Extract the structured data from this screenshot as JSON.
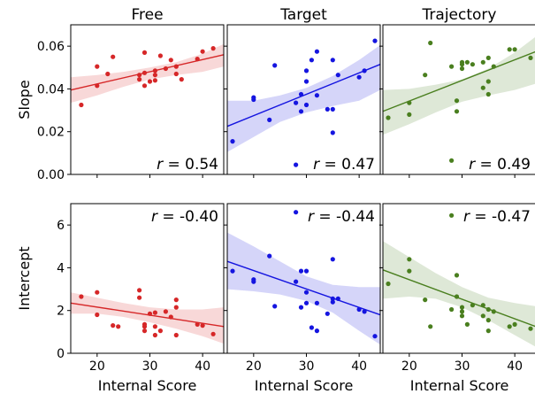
{
  "chart_data": [
    {
      "type": "scatter",
      "title": "Free",
      "ylabel": "Slope",
      "xlabel": "",
      "color": "#d62728",
      "xlim": [
        15,
        44
      ],
      "ylim": [
        0,
        0.07
      ],
      "yticks": [
        0,
        0.02,
        0.04,
        0.06
      ],
      "ytick_labels": [
        "0.00",
        "0.02",
        "0.04",
        "0.06"
      ],
      "xticks": [
        20,
        30,
        40
      ],
      "xtick_labels": [],
      "annotation": {
        "var": "r",
        "value": "= 0.54",
        "pos": "bottom-right"
      },
      "points": [
        [
          17,
          0.0325
        ],
        [
          20,
          0.0415
        ],
        [
          20,
          0.0505
        ],
        [
          22,
          0.047
        ],
        [
          23,
          0.055
        ],
        [
          28,
          0.0445
        ],
        [
          28,
          0.0465
        ],
        [
          29,
          0.0415
        ],
        [
          29,
          0.0475
        ],
        [
          29,
          0.057
        ],
        [
          30,
          0.0435
        ],
        [
          31,
          0.044
        ],
        [
          31,
          0.0485
        ],
        [
          31,
          0.0465
        ],
        [
          32,
          0.0555
        ],
        [
          33,
          0.0495
        ],
        [
          34,
          0.0535
        ],
        [
          35,
          0.0505
        ],
        [
          35,
          0.047
        ],
        [
          36,
          0.0445
        ],
        [
          39,
          0.054
        ],
        [
          40,
          0.0575
        ],
        [
          42,
          0.059
        ]
      ],
      "fit": {
        "x": [
          15,
          44
        ],
        "y": [
          0.0395,
          0.056
        ]
      },
      "band": {
        "x": [
          15,
          20,
          25,
          30,
          35,
          40,
          44
        ],
        "upper": [
          0.0455,
          0.0465,
          0.048,
          0.05,
          0.0525,
          0.0565,
          0.061
        ],
        "lower": [
          0.0335,
          0.037,
          0.041,
          0.0445,
          0.0465,
          0.048,
          0.0505
        ]
      }
    },
    {
      "type": "scatter",
      "title": "Target",
      "ylabel": "",
      "xlabel": "",
      "color": "#1515e0",
      "xlim": [
        15,
        44
      ],
      "ylim": [
        0,
        0.07
      ],
      "yticks": [
        0,
        0.02,
        0.04,
        0.06
      ],
      "ytick_labels": [],
      "xticks": [
        20,
        30,
        40
      ],
      "xtick_labels": [],
      "annotation": {
        "var": "r",
        "value": "= 0.47",
        "pos": "bottom-right"
      },
      "points": [
        [
          16,
          0.0155
        ],
        [
          20,
          0.036
        ],
        [
          20,
          0.035
        ],
        [
          23,
          0.0255
        ],
        [
          24,
          0.051
        ],
        [
          28,
          0.0045
        ],
        [
          28,
          0.0335
        ],
        [
          29,
          0.0375
        ],
        [
          29,
          0.0295
        ],
        [
          30,
          0.0435
        ],
        [
          30,
          0.0485
        ],
        [
          30,
          0.0325
        ],
        [
          31,
          0.0535
        ],
        [
          32,
          0.0575
        ],
        [
          32,
          0.037
        ],
        [
          34,
          0.0305
        ],
        [
          35,
          0.0305
        ],
        [
          35,
          0.0535
        ],
        [
          35,
          0.0195
        ],
        [
          36,
          0.0465
        ],
        [
          40,
          0.0455
        ],
        [
          41,
          0.0485
        ],
        [
          43,
          0.0625
        ]
      ],
      "fit": {
        "x": [
          15,
          44
        ],
        "y": [
          0.0225,
          0.0515
        ]
      },
      "band": {
        "x": [
          15,
          20,
          25,
          30,
          35,
          40,
          44
        ],
        "upper": [
          0.0345,
          0.0345,
          0.037,
          0.0405,
          0.046,
          0.0535,
          0.0605
        ],
        "lower": [
          0.0105,
          0.0175,
          0.0245,
          0.029,
          0.032,
          0.0345,
          0.0395
        ]
      }
    },
    {
      "type": "scatter",
      "title": "Trajectory",
      "ylabel": "",
      "xlabel": "",
      "color": "#4a7f1f",
      "xlim": [
        15,
        44
      ],
      "ylim": [
        0,
        0.07
      ],
      "yticks": [
        0,
        0.02,
        0.04,
        0.06
      ],
      "ytick_labels": [],
      "xticks": [
        20,
        30,
        40
      ],
      "xtick_labels": [],
      "annotation": {
        "var": "r",
        "value": "= 0.49",
        "pos": "bottom-right"
      },
      "points": [
        [
          16,
          0.0265
        ],
        [
          20,
          0.028
        ],
        [
          20,
          0.0335
        ],
        [
          23,
          0.0465
        ],
        [
          24,
          0.0615
        ],
        [
          28,
          0.0065
        ],
        [
          28,
          0.0505
        ],
        [
          29,
          0.0295
        ],
        [
          29,
          0.0345
        ],
        [
          30,
          0.0495
        ],
        [
          30,
          0.0515
        ],
        [
          30,
          0.0525
        ],
        [
          31,
          0.0525
        ],
        [
          32,
          0.0515
        ],
        [
          34,
          0.0525
        ],
        [
          34,
          0.0405
        ],
        [
          35,
          0.0435
        ],
        [
          35,
          0.0375
        ],
        [
          35,
          0.0545
        ],
        [
          36,
          0.0505
        ],
        [
          39,
          0.0585
        ],
        [
          40,
          0.0585
        ],
        [
          43,
          0.0545
        ]
      ],
      "fit": {
        "x": [
          15,
          44
        ],
        "y": [
          0.0295,
          0.0575
        ]
      },
      "band": {
        "x": [
          15,
          20,
          25,
          30,
          35,
          40,
          44
        ],
        "upper": [
          0.0395,
          0.04,
          0.042,
          0.0445,
          0.0495,
          0.057,
          0.0645
        ],
        "lower": [
          0.0185,
          0.0235,
          0.029,
          0.034,
          0.037,
          0.0395,
          0.0425
        ]
      }
    },
    {
      "type": "scatter",
      "title": "",
      "ylabel": "Intercept",
      "xlabel": "Internal Score",
      "color": "#d62728",
      "xlim": [
        15,
        44
      ],
      "ylim": [
        0,
        7
      ],
      "yticks": [
        0,
        2,
        4,
        6
      ],
      "ytick_labels": [
        "0",
        "2",
        "4",
        "6"
      ],
      "xticks": [
        20,
        30,
        40
      ],
      "xtick_labels": [
        "20",
        "30",
        "40"
      ],
      "annotation": {
        "var": "r",
        "value": "= -0.40",
        "pos": "top-right"
      },
      "points": [
        [
          17,
          2.65
        ],
        [
          20,
          1.8
        ],
        [
          20,
          2.85
        ],
        [
          23,
          1.3
        ],
        [
          24,
          1.25
        ],
        [
          28,
          2.95
        ],
        [
          28,
          2.6
        ],
        [
          29,
          1.05
        ],
        [
          29,
          1.35
        ],
        [
          29,
          1.25
        ],
        [
          30,
          1.85
        ],
        [
          31,
          1.25
        ],
        [
          31,
          0.85
        ],
        [
          31,
          1.9
        ],
        [
          32,
          1.05
        ],
        [
          33,
          1.95
        ],
        [
          34,
          1.7
        ],
        [
          35,
          2.5
        ],
        [
          35,
          2.15
        ],
        [
          35,
          0.85
        ],
        [
          39,
          1.35
        ],
        [
          40,
          1.3
        ],
        [
          42,
          0.9
        ]
      ],
      "fit": {
        "x": [
          15,
          44
        ],
        "y": [
          2.35,
          1.25
        ]
      },
      "band": {
        "x": [
          15,
          20,
          25,
          30,
          35,
          40,
          44
        ],
        "upper": [
          2.85,
          2.6,
          2.35,
          2.15,
          2.05,
          2.05,
          2.15
        ],
        "lower": [
          1.85,
          1.85,
          1.7,
          1.45,
          1.15,
          0.8,
          0.45
        ]
      }
    },
    {
      "type": "scatter",
      "title": "",
      "ylabel": "",
      "xlabel": "Internal Score",
      "color": "#1515e0",
      "xlim": [
        15,
        44
      ],
      "ylim": [
        0,
        7
      ],
      "yticks": [
        0,
        2,
        4,
        6
      ],
      "ytick_labels": [],
      "xticks": [
        20,
        30,
        40
      ],
      "xtick_labels": [
        "20",
        "30",
        "40"
      ],
      "annotation": {
        "var": "r",
        "value": "= -0.44",
        "pos": "top-right"
      },
      "points": [
        [
          16,
          3.85
        ],
        [
          20,
          3.45
        ],
        [
          20,
          3.35
        ],
        [
          23,
          4.55
        ],
        [
          24,
          2.2
        ],
        [
          28,
          6.6
        ],
        [
          28,
          3.35
        ],
        [
          29,
          3.85
        ],
        [
          29,
          2.15
        ],
        [
          30,
          3.85
        ],
        [
          30,
          2.85
        ],
        [
          30,
          2.35
        ],
        [
          31,
          1.2
        ],
        [
          32,
          1.05
        ],
        [
          32,
          2.35
        ],
        [
          34,
          1.85
        ],
        [
          35,
          2.4
        ],
        [
          35,
          4.4
        ],
        [
          35,
          2.55
        ],
        [
          36,
          2.55
        ],
        [
          40,
          2.05
        ],
        [
          41,
          1.95
        ],
        [
          43,
          0.8
        ]
      ],
      "fit": {
        "x": [
          15,
          44
        ],
        "y": [
          4.3,
          1.8
        ]
      },
      "band": {
        "x": [
          15,
          20,
          25,
          30,
          35,
          40,
          44
        ],
        "upper": [
          5.65,
          5.0,
          4.3,
          3.6,
          3.2,
          3.1,
          3.1
        ],
        "lower": [
          3.0,
          2.9,
          2.75,
          2.45,
          1.9,
          1.05,
          0.4
        ]
      }
    },
    {
      "type": "scatter",
      "title": "",
      "ylabel": "",
      "xlabel": "Internal Score",
      "color": "#4a7f1f",
      "xlim": [
        15,
        44
      ],
      "ylim": [
        0,
        7
      ],
      "yticks": [
        0,
        2,
        4,
        6
      ],
      "ytick_labels": [],
      "xticks": [
        20,
        30,
        40
      ],
      "xtick_labels": [
        "20",
        "30",
        "40"
      ],
      "annotation": {
        "var": "r",
        "value": "= -0.47",
        "pos": "top-right"
      },
      "points": [
        [
          16,
          3.25
        ],
        [
          20,
          4.4
        ],
        [
          20,
          3.85
        ],
        [
          23,
          2.5
        ],
        [
          24,
          1.25
        ],
        [
          28,
          6.45
        ],
        [
          28,
          2.05
        ],
        [
          29,
          3.65
        ],
        [
          29,
          2.65
        ],
        [
          30,
          2.15
        ],
        [
          30,
          1.95
        ],
        [
          30,
          1.75
        ],
        [
          31,
          1.35
        ],
        [
          32,
          2.25
        ],
        [
          34,
          2.25
        ],
        [
          34,
          1.75
        ],
        [
          35,
          2.05
        ],
        [
          35,
          1.55
        ],
        [
          35,
          1.05
        ],
        [
          36,
          1.95
        ],
        [
          39,
          1.25
        ],
        [
          40,
          1.35
        ],
        [
          43,
          1.15
        ]
      ],
      "fit": {
        "x": [
          15,
          44
        ],
        "y": [
          3.9,
          1.25
        ]
      },
      "band": {
        "x": [
          15,
          20,
          25,
          30,
          35,
          40,
          44
        ],
        "upper": [
          5.25,
          4.5,
          3.75,
          3.1,
          2.6,
          2.35,
          2.2
        ],
        "lower": [
          2.55,
          2.65,
          2.55,
          2.15,
          1.55,
          0.85,
          0.3
        ]
      }
    }
  ]
}
